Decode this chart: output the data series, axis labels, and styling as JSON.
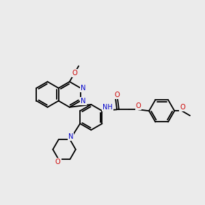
{
  "background_color": "#ebebeb",
  "bond_color": "#000000",
  "nitrogen_color": "#0000cc",
  "oxygen_color": "#cc0000",
  "figsize": [
    3.0,
    3.0
  ],
  "dpi": 100,
  "lw": 1.35,
  "R": 19,
  "atoms": {
    "N1_label": "N",
    "N2_label": "N",
    "O_ome1": "O",
    "O_morph": "O",
    "NH": "NH",
    "O_carbonyl": "O",
    "O_ether": "O",
    "O_ome2": "O"
  }
}
